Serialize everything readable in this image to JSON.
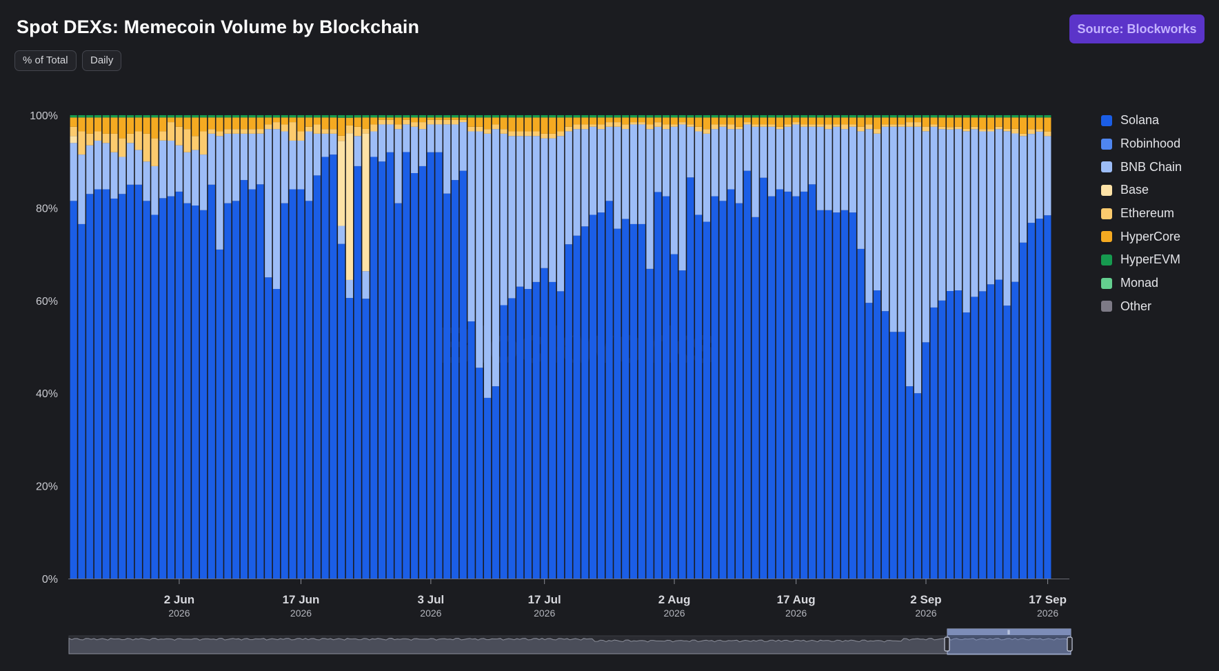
{
  "header": {
    "title": "Spot DEXs: Memecoin Volume by Blockchain",
    "source_label": "Source: Blockworks"
  },
  "controls": [
    "% of Total",
    "Daily"
  ],
  "watermark": "Blockworks",
  "colors": {
    "background": "#1b1c20",
    "source_button": "#5b34c9"
  },
  "chart_data": {
    "type": "bar",
    "stacked": true,
    "normalized": true,
    "title": "Spot DEXs: Memecoin Volume by Blockchain",
    "xlabel": "",
    "ylabel": "",
    "ylim": [
      0,
      100
    ],
    "y_ticks": [
      "0%",
      "20%",
      "40%",
      "60%",
      "80%",
      "100%"
    ],
    "x_range": [
      "2026-05-20",
      "2026-09-19"
    ],
    "x_ticks": [
      {
        "date": "2026-06-02",
        "label": "2 Jun",
        "year": "2026"
      },
      {
        "date": "2026-06-17",
        "label": "17 Jun",
        "year": "2026"
      },
      {
        "date": "2026-07-03",
        "label": "3 Jul",
        "year": "2026"
      },
      {
        "date": "2026-07-17",
        "label": "17 Jul",
        "year": "2026"
      },
      {
        "date": "2026-08-02",
        "label": "2 Aug",
        "year": "2026"
      },
      {
        "date": "2026-08-17",
        "label": "17 Aug",
        "year": "2026"
      },
      {
        "date": "2026-09-02",
        "label": "2 Sep",
        "year": "2026"
      },
      {
        "date": "2026-09-17",
        "label": "17 Sep",
        "year": "2026"
      }
    ],
    "legend_position": "right",
    "grid": false,
    "series": [
      {
        "name": "Solana",
        "color": "#1b5ee6"
      },
      {
        "name": "Robinhood",
        "color": "#4f86f0"
      },
      {
        "name": "BNB Chain",
        "color": "#9dbdf7"
      },
      {
        "name": "Base",
        "color": "#fde2a6"
      },
      {
        "name": "Ethereum",
        "color": "#fccb6e"
      },
      {
        "name": "HyperCore",
        "color": "#f5aa21"
      },
      {
        "name": "HyperEVM",
        "color": "#169a4f"
      },
      {
        "name": "Monad",
        "color": "#64cf8f"
      },
      {
        "name": "Other",
        "color": "#7d7a86"
      }
    ],
    "solana": [
      81.5,
      76.5,
      83,
      84,
      84,
      82,
      83,
      85,
      85,
      81.5,
      78.5,
      82.5,
      82.5,
      83.5,
      81,
      80.5,
      79.5,
      85,
      71,
      81,
      81.5,
      86,
      84,
      85.5,
      65,
      62.5,
      81,
      84,
      84,
      81.5,
      87,
      91,
      91.5,
      65,
      54.5,
      89,
      61,
      91,
      90,
      92,
      81,
      92.5,
      87.5,
      89,
      92,
      92,
      83.5,
      86,
      88,
      55.5,
      45.5,
      39,
      41.5,
      59,
      60.5,
      63,
      62.5,
      64,
      67,
      64,
      62,
      72.5,
      74,
      76,
      78.5,
      79,
      81.5,
      75.5,
      78,
      76.5,
      76.5,
      66.5,
      83,
      82.5,
      70,
      66.5,
      87,
      78.5,
      77,
      82.5,
      81.5,
      84,
      81,
      88,
      78,
      86.5,
      82.5,
      84,
      83.5,
      82.5,
      83.5,
      85.5,
      79.5,
      79.5,
      79,
      79.5,
      79,
      71.5,
      59.5,
      62.5,
      58,
      53.5,
      53.5,
      41.5,
      40,
      51.5,
      58.5,
      60,
      60.5,
      62.5,
      58,
      60.5,
      62,
      63.5,
      64.5,
      59.5,
      65,
      72.5,
      76,
      76.5,
      78
    ],
    "robinhood": [
      0,
      0,
      0,
      0,
      0,
      0,
      0,
      0,
      0,
      0,
      0,
      0,
      0,
      0,
      0,
      0,
      0,
      0,
      0,
      0,
      0,
      0,
      0,
      0,
      0,
      0,
      0,
      0,
      0,
      0,
      0,
      0,
      0,
      0,
      0,
      0,
      0,
      0,
      0,
      0,
      0,
      0,
      0,
      0,
      0,
      0,
      0,
      0,
      0,
      0,
      0,
      0,
      0,
      0,
      0,
      0,
      0,
      0,
      0,
      0,
      0,
      0,
      0,
      0,
      0,
      0,
      0,
      0,
      0,
      0,
      0,
      0,
      0,
      0,
      0,
      0,
      0,
      0,
      0,
      0,
      0,
      0,
      0,
      0,
      0,
      0,
      0,
      0,
      0,
      0,
      0,
      0,
      0,
      0,
      0,
      0,
      0,
      0,
      0,
      0,
      0,
      0,
      0,
      0,
      0,
      0,
      0,
      0,
      0,
      0,
      0,
      0,
      0,
      0,
      0,
      0,
      0,
      0,
      0,
      0,
      0
    ],
    "bnb_chain": [
      12.5,
      15,
      10.5,
      10.5,
      10,
      10,
      8,
      9,
      7.5,
      8.5,
      10.5,
      12.5,
      12,
      10,
      11,
      12,
      12,
      11,
      24.5,
      15,
      14.5,
      10,
      12,
      11,
      32,
      34.5,
      15.5,
      10.5,
      10.5,
      15,
      9,
      5,
      4.5,
      3.5,
      3.5,
      6.5,
      6,
      5.5,
      8,
      6,
      16,
      6,
      10,
      8,
      6,
      6,
      15,
      12,
      10.5,
      41,
      51,
      57,
      55.5,
      37,
      35,
      32.5,
      33,
      31.5,
      28,
      31,
      33.5,
      24.5,
      23,
      21,
      19,
      18,
      16,
      22,
      19.5,
      21.5,
      21.5,
      30,
      14,
      14.5,
      27.5,
      31.5,
      11,
      18,
      19,
      14.5,
      16,
      13,
      16,
      10,
      19.5,
      11,
      15,
      13,
      14,
      15.5,
      14,
      12.5,
      18,
      17.5,
      18.5,
      17.5,
      18.5,
      25.5,
      37.5,
      34,
      40,
      44.5,
      44.5,
      56,
      57.5,
      46,
      39,
      37,
      34,
      35,
      39.5,
      36,
      34.5,
      33,
      32.5,
      38,
      32.5,
      23,
      19,
      18.5,
      17
    ],
    "base": [
      1.5,
      0,
      0,
      0,
      0,
      0,
      0,
      0,
      0,
      0,
      0,
      0,
      0,
      0,
      0,
      0,
      0,
      0,
      0,
      0,
      0,
      0,
      0,
      0,
      0,
      0,
      0,
      0,
      0,
      0,
      0,
      0,
      0,
      16.5,
      28.5,
      0,
      30,
      0,
      0,
      0,
      0,
      0,
      0,
      0,
      0,
      0,
      0,
      0,
      0,
      0,
      0,
      0,
      0,
      0,
      0,
      0,
      0,
      0,
      0,
      0,
      0,
      0,
      0,
      0,
      0,
      0,
      0,
      0,
      0,
      0,
      0,
      0,
      0,
      0,
      0,
      0,
      0,
      0,
      0,
      0,
      0,
      0,
      0,
      0,
      0,
      0,
      0,
      0,
      0,
      0,
      0,
      0,
      0,
      0,
      0,
      0,
      0,
      0,
      0,
      0,
      0,
      0,
      0,
      0,
      0,
      0,
      0,
      0,
      0,
      0,
      0,
      0,
      0,
      0,
      0,
      0,
      0,
      0,
      0,
      0,
      0
    ],
    "ethereum": [
      2,
      5,
      2.5,
      2,
      2,
      4,
      4,
      2,
      4,
      6,
      6,
      2,
      4,
      4,
      5,
      3,
      5,
      1,
      1,
      1,
      1,
      1,
      1,
      1,
      1,
      1.5,
      1.5,
      4,
      2,
      1,
      2,
      1,
      1,
      1,
      1.5,
      2,
      1,
      1.5,
      1,
      1,
      1,
      1,
      1,
      1.5,
      1,
      1,
      1,
      1,
      0.5,
      1,
      1,
      1,
      1,
      1,
      1,
      1,
      1,
      1,
      1,
      1,
      1,
      1,
      1,
      1,
      0.5,
      1,
      1,
      1,
      1,
      0.5,
      0.5,
      1,
      1,
      1,
      0.5,
      0.5,
      0.5,
      1,
      1,
      1,
      0.5,
      1,
      0.5,
      0.5,
      0.5,
      0.5,
      0.5,
      0.5,
      0.5,
      0.5,
      0.5,
      0.5,
      0.5,
      1,
      0.5,
      1,
      0.5,
      1,
      1,
      1,
      0.5,
      0.5,
      0.5,
      1,
      1,
      1,
      0.5,
      0.5,
      0.5,
      0.5,
      0.5,
      0.5,
      0.5,
      0.5,
      0.5,
      0.5,
      1,
      0.5,
      1,
      0.5,
      1
    ],
    "hypercore": [
      2,
      3,
      3.5,
      3,
      3.5,
      3.5,
      4.5,
      3.5,
      3,
      3.5,
      4.5,
      3,
      1,
      2,
      2.5,
      4,
      3,
      2.5,
      3,
      2.5,
      2.5,
      2.5,
      2.5,
      2.5,
      1.5,
      1,
      1.5,
      1,
      3,
      2,
      1.5,
      2.5,
      2.5,
      3.5,
      1.5,
      2,
      2.5,
      1.5,
      0.5,
      0.5,
      1.5,
      0.5,
      1,
      1,
      0.5,
      0.5,
      0.5,
      0.5,
      0.5,
      2,
      2,
      2.5,
      1.5,
      2.5,
      3,
      3,
      3,
      3,
      3.5,
      3.5,
      3,
      2,
      1.5,
      1.5,
      1.5,
      1.5,
      1,
      1,
      1.5,
      1,
      1,
      1.5,
      1,
      1.5,
      1.5,
      1,
      1.5,
      2,
      2.5,
      1.5,
      1.5,
      1.5,
      2,
      1,
      1.5,
      1.5,
      1.5,
      2,
      1.5,
      1,
      1.5,
      1.5,
      1.5,
      1.5,
      1.5,
      1.5,
      1.5,
      2,
      1.5,
      2.5,
      1.5,
      1.5,
      1.5,
      1,
      1,
      2,
      1.5,
      2,
      2,
      2,
      2.5,
      2,
      2.5,
      2.5,
      2,
      2.5,
      2.5,
      3.5,
      2.5,
      2.5,
      3
    ],
    "hyperevm": [
      0.5,
      0.5,
      0.5,
      0.5,
      0.5,
      0.5,
      0.5,
      0.5,
      0.5,
      0.5,
      0.5,
      0.5,
      0.5,
      0.5,
      0.5,
      0.5,
      0.5,
      0.5,
      0.5,
      0.5,
      0.5,
      0.5,
      0.5,
      0.5,
      0.5,
      0.5,
      0.5,
      0.5,
      0.5,
      0.5,
      0.5,
      0.5,
      0.5,
      0.5,
      0.5,
      0.5,
      0.5,
      0.5,
      0.5,
      0.5,
      0.5,
      0.5,
      0.5,
      0.5,
      0.5,
      0.5,
      0.5,
      0.5,
      0.5,
      0.5,
      0.5,
      0.5,
      0.5,
      0.5,
      0.5,
      0.5,
      0.5,
      0.5,
      0.5,
      0.5,
      0.5,
      0.5,
      0.5,
      0.5,
      0.5,
      0.5,
      0.5,
      0.5,
      0.5,
      0.5,
      0.5,
      0.5,
      0.5,
      0.5,
      0.5,
      0.5,
      0.5,
      0.5,
      0.5,
      0.5,
      0.5,
      0.5,
      0.5,
      0.5,
      0.5,
      0.5,
      0.5,
      0.5,
      0.5,
      0.5,
      0.5,
      0.5,
      0.5,
      0.5,
      0.5,
      0.5,
      0.5,
      0.5,
      0.5,
      0.5,
      0.5,
      0.5,
      0.5,
      0.5,
      0.5,
      0.5,
      0.5,
      0.5,
      0.5,
      0.5,
      0.5,
      0.5,
      0.5,
      0.5,
      0.5,
      0.5,
      0.5,
      0.5,
      0.5,
      0.5,
      0.5
    ],
    "monad": [
      0,
      0,
      0,
      0,
      0,
      0,
      0,
      0,
      0,
      0,
      0,
      0,
      0,
      0,
      0,
      0,
      0,
      0,
      0,
      0,
      0,
      0,
      0,
      0,
      0,
      0,
      0,
      0,
      0,
      0,
      0,
      0,
      0,
      0,
      0,
      0,
      0,
      0,
      0,
      0,
      0,
      0,
      0,
      0,
      0,
      0,
      0,
      0,
      0,
      0,
      0,
      0,
      0,
      0,
      0,
      0,
      0,
      0,
      0,
      0,
      0,
      0,
      0,
      0,
      0,
      0,
      0,
      0,
      0,
      0,
      0,
      0,
      0,
      0,
      0,
      0,
      0,
      0,
      0,
      0,
      0,
      0,
      0,
      0,
      0,
      0,
      0,
      0,
      0,
      0,
      0,
      0,
      0,
      0,
      0,
      0,
      0,
      0,
      0,
      0,
      0,
      0,
      0,
      0,
      0,
      0,
      0,
      0,
      0,
      0,
      0,
      0,
      0,
      0,
      0,
      0,
      0,
      0,
      0,
      0,
      0
    ],
    "other": [
      0,
      0,
      0,
      0,
      0,
      0,
      0,
      0,
      0,
      0,
      0,
      0,
      0,
      0,
      0,
      0,
      0,
      0,
      0,
      0,
      0,
      0,
      0,
      0,
      0,
      0,
      0,
      0,
      0,
      0,
      0,
      0,
      0,
      0,
      0,
      0,
      0,
      0,
      0,
      0,
      0,
      0,
      0,
      0,
      0,
      0,
      0,
      0,
      0,
      0,
      0,
      0,
      0,
      0,
      0,
      0,
      0,
      0,
      0,
      0,
      0,
      0,
      0,
      0,
      0,
      0,
      0,
      0,
      0,
      0,
      0,
      0,
      0,
      0,
      0,
      0,
      0,
      0,
      0,
      0,
      0,
      0,
      0,
      0,
      0,
      0,
      0,
      0,
      0,
      0,
      0,
      0,
      0,
      0,
      0,
      0,
      0,
      0,
      0,
      0,
      0,
      0,
      0,
      0,
      0,
      0,
      0,
      0,
      0,
      0,
      0,
      0,
      0,
      0,
      0,
      0,
      0,
      0,
      0,
      0,
      0
    ]
  }
}
